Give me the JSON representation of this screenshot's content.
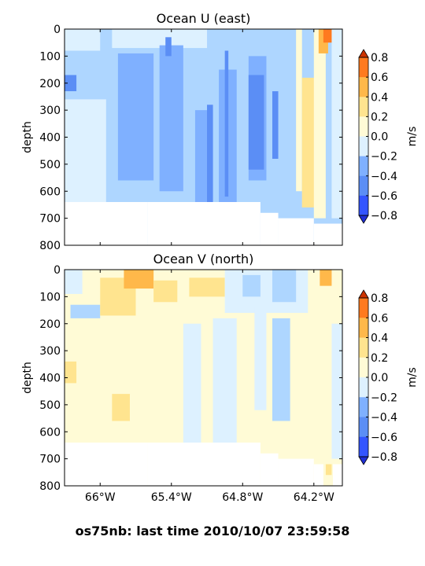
{
  "palette": {
    "-0.8": "#3355ff",
    "-0.6": "#5b8ef5",
    "-0.4": "#7fb0ff",
    "-0.2": "#aed6ff",
    "0.0": "#ddf1ff",
    "0.2": "#fffbd6",
    "0.4": "#ffe48f",
    "0.6": "#ffb84a",
    "0.8": "#ff7a1f"
  },
  "footer": {
    "text": "os75nb: last time 2010/10/07 23:59:58"
  },
  "chart_data": [
    {
      "type": "heatmap",
      "title": "Ocean U (east)",
      "xlabel": "",
      "ylabel": "depth",
      "colorbar_label": "m/s",
      "xlim": [
        -66.3,
        -63.96
      ],
      "ylim": [
        800,
        0
      ],
      "x_ticks": [
        "66°W",
        "65.4°W",
        "64.8°W",
        "64.2°W"
      ],
      "y_ticks": [
        "0",
        "100",
        "200",
        "300",
        "400",
        "500",
        "600",
        "700",
        "800"
      ],
      "colorbar_ticks": [
        "0.8",
        "0.6",
        "0.4",
        "0.2",
        "0.0",
        "−0.2",
        "−0.4",
        "−0.6",
        "−0.8"
      ],
      "levels": [
        -0.8,
        -0.6,
        -0.4,
        -0.2,
        0.0,
        0.2,
        0.4,
        0.6,
        0.8
      ],
      "background_level": -0.2,
      "cells": [
        {
          "x": [
            -66.3,
            -66.0
          ],
          "y": [
            0,
            80
          ],
          "level": 0.0
        },
        {
          "x": [
            -65.9,
            -65.1
          ],
          "y": [
            0,
            70
          ],
          "level": 0.0
        },
        {
          "x": [
            -66.3,
            -66.2
          ],
          "y": [
            170,
            230
          ],
          "level": -0.6
        },
        {
          "x": [
            -66.3,
            -65.95
          ],
          "y": [
            230,
            260
          ],
          "level": -0.2
        },
        {
          "x": [
            -66.3,
            -65.95
          ],
          "y": [
            260,
            640
          ],
          "level": 0.0
        },
        {
          "x": [
            -65.85,
            -65.55
          ],
          "y": [
            90,
            560
          ],
          "level": -0.4
        },
        {
          "x": [
            -65.5,
            -65.3
          ],
          "y": [
            60,
            600
          ],
          "level": -0.4
        },
        {
          "x": [
            -65.2,
            -65.05
          ],
          "y": [
            300,
            640
          ],
          "level": -0.4
        },
        {
          "x": [
            -65.0,
            -64.85
          ],
          "y": [
            150,
            640
          ],
          "level": -0.4
        },
        {
          "x": [
            -64.75,
            -64.6
          ],
          "y": [
            100,
            560
          ],
          "level": -0.4
        },
        {
          "x": [
            -65.1,
            -65.05
          ],
          "y": [
            280,
            640
          ],
          "level": -0.6
        },
        {
          "x": [
            -64.95,
            -64.92
          ],
          "y": [
            80,
            620
          ],
          "level": -0.6
        },
        {
          "x": [
            -64.75,
            -64.62
          ],
          "y": [
            170,
            520
          ],
          "level": -0.6
        },
        {
          "x": [
            -64.55,
            -64.5
          ],
          "y": [
            230,
            480
          ],
          "level": -0.6
        },
        {
          "x": [
            -65.45,
            -65.4
          ],
          "y": [
            30,
            100
          ],
          "level": -0.6
        },
        {
          "x": [
            -64.35,
            -64.3
          ],
          "y": [
            0,
            600
          ],
          "level": 0.2
        },
        {
          "x": [
            -64.3,
            -64.18
          ],
          "y": [
            180,
            660
          ],
          "level": 0.4
        },
        {
          "x": [
            -64.2,
            -64.1
          ],
          "y": [
            0,
            700
          ],
          "level": 0.2
        },
        {
          "x": [
            -64.16,
            -64.08
          ],
          "y": [
            0,
            90
          ],
          "level": 0.6
        },
        {
          "x": [
            -64.12,
            -64.04
          ],
          "y": [
            0,
            50
          ],
          "level": 0.8
        },
        {
          "x": [
            -64.05,
            -63.96
          ],
          "y": [
            0,
            700
          ],
          "level": 0.0
        },
        {
          "x": [
            -66.3,
            -65.6
          ],
          "y": [
            640,
            800
          ],
          "level": "blank"
        },
        {
          "x": [
            -65.6,
            -64.65
          ],
          "y": [
            640,
            800
          ],
          "level": "blank"
        },
        {
          "x": [
            -64.65,
            -64.5
          ],
          "y": [
            680,
            800
          ],
          "level": "blank"
        },
        {
          "x": [
            -64.5,
            -64.2
          ],
          "y": [
            700,
            800
          ],
          "level": "blank"
        },
        {
          "x": [
            -64.2,
            -63.96
          ],
          "y": [
            720,
            800
          ],
          "level": "blank"
        }
      ]
    },
    {
      "type": "heatmap",
      "title": "Ocean V (north)",
      "xlabel": "",
      "ylabel": "depth",
      "colorbar_label": "m/s",
      "xlim": [
        -66.3,
        -63.96
      ],
      "ylim": [
        800,
        0
      ],
      "x_ticks": [
        "66°W",
        "65.4°W",
        "64.8°W",
        "64.2°W"
      ],
      "y_ticks": [
        "0",
        "100",
        "200",
        "300",
        "400",
        "500",
        "600",
        "700",
        "800"
      ],
      "colorbar_ticks": [
        "0.8",
        "0.6",
        "0.4",
        "0.2",
        "0.0",
        "−0.2",
        "−0.4",
        "−0.6",
        "−0.8"
      ],
      "levels": [
        -0.8,
        -0.6,
        -0.4,
        -0.2,
        0.0,
        0.2,
        0.4,
        0.6,
        0.8
      ],
      "background_level": 0.2,
      "cells": [
        {
          "x": [
            -66.3,
            -66.15
          ],
          "y": [
            0,
            90
          ],
          "level": 0.0
        },
        {
          "x": [
            -66.25,
            -66.0
          ],
          "y": [
            130,
            180
          ],
          "level": -0.2
        },
        {
          "x": [
            -66.0,
            -65.7
          ],
          "y": [
            30,
            170
          ],
          "level": 0.4
        },
        {
          "x": [
            -65.8,
            -65.55
          ],
          "y": [
            0,
            70
          ],
          "level": 0.6
        },
        {
          "x": [
            -65.55,
            -65.35
          ],
          "y": [
            40,
            120
          ],
          "level": 0.4
        },
        {
          "x": [
            -65.25,
            -64.95
          ],
          "y": [
            30,
            100
          ],
          "level": 0.4
        },
        {
          "x": [
            -65.3,
            -65.15
          ],
          "y": [
            200,
            640
          ],
          "level": 0.0
        },
        {
          "x": [
            -65.05,
            -64.85
          ],
          "y": [
            180,
            640
          ],
          "level": 0.0
        },
        {
          "x": [
            -64.95,
            -64.25
          ],
          "y": [
            0,
            160
          ],
          "level": 0.0
        },
        {
          "x": [
            -64.8,
            -64.65
          ],
          "y": [
            20,
            100
          ],
          "level": -0.2
        },
        {
          "x": [
            -64.55,
            -64.35
          ],
          "y": [
            0,
            120
          ],
          "level": -0.2
        },
        {
          "x": [
            -64.55,
            -64.4
          ],
          "y": [
            180,
            560
          ],
          "level": -0.2
        },
        {
          "x": [
            -64.7,
            -64.6
          ],
          "y": [
            140,
            520
          ],
          "level": 0.0
        },
        {
          "x": [
            -66.3,
            -66.2
          ],
          "y": [
            340,
            420
          ],
          "level": 0.4
        },
        {
          "x": [
            -65.9,
            -65.75
          ],
          "y": [
            460,
            560
          ],
          "level": 0.4
        },
        {
          "x": [
            -64.05,
            -63.96
          ],
          "y": [
            200,
            700
          ],
          "level": 0.0
        },
        {
          "x": [
            -64.15,
            -64.05
          ],
          "y": [
            0,
            60
          ],
          "level": 0.6
        },
        {
          "x": [
            -64.1,
            -64.05
          ],
          "y": [
            720,
            760
          ],
          "level": 0.4
        },
        {
          "x": [
            -66.3,
            -65.6
          ],
          "y": [
            640,
            800
          ],
          "level": "blank"
        },
        {
          "x": [
            -65.6,
            -64.65
          ],
          "y": [
            640,
            800
          ],
          "level": "blank"
        },
        {
          "x": [
            -64.65,
            -64.5
          ],
          "y": [
            680,
            800
          ],
          "level": "blank"
        },
        {
          "x": [
            -64.5,
            -64.2
          ],
          "y": [
            700,
            800
          ],
          "level": "blank"
        },
        {
          "x": [
            -64.2,
            -64.12
          ],
          "y": [
            720,
            800
          ],
          "level": "blank"
        },
        {
          "x": [
            -64.04,
            -63.96
          ],
          "y": [
            720,
            800
          ],
          "level": "blank"
        }
      ]
    }
  ]
}
